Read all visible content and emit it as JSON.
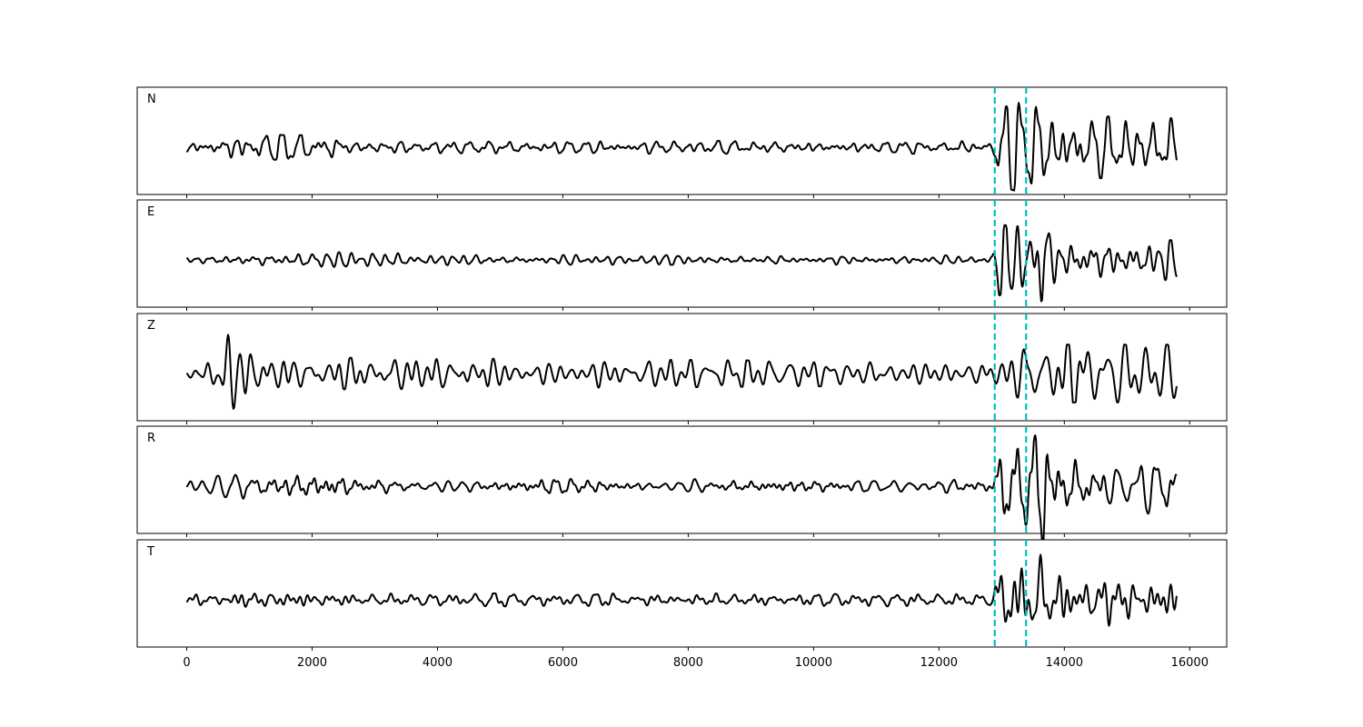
{
  "chart_data": {
    "type": "line",
    "title": "",
    "xlabel": "",
    "ylabel": "",
    "xlim": [
      -790,
      16590
    ],
    "x_ticks": [
      0,
      2000,
      4000,
      6000,
      8000,
      10000,
      12000,
      14000,
      16000
    ],
    "x_tick_labels": [
      "0",
      "2000",
      "4000",
      "6000",
      "8000",
      "10000",
      "12000",
      "14000",
      "16000"
    ],
    "x_range_of_traces": [
      0,
      15800
    ],
    "grid": false,
    "line_color": "#000000",
    "marker_color": "#00bfbf",
    "marker_style": "dashed",
    "vertical_markers": [
      12890,
      13390
    ],
    "panels": [
      {
        "label": "N",
        "envelope": [
          [
            0,
            0.1
          ],
          [
            800,
            0.2
          ],
          [
            2400,
            0.18
          ],
          [
            2600,
            0.1
          ],
          [
            12850,
            0.1
          ],
          [
            12950,
            0.6
          ],
          [
            13300,
            0.7
          ],
          [
            13600,
            0.95
          ],
          [
            13800,
            0.5
          ],
          [
            15800,
            0.45
          ]
        ]
      },
      {
        "label": "E",
        "envelope": [
          [
            0,
            0.05
          ],
          [
            1200,
            0.12
          ],
          [
            3400,
            0.12
          ],
          [
            3600,
            0.08
          ],
          [
            12850,
            0.07
          ],
          [
            12950,
            0.55
          ],
          [
            13500,
            0.5
          ],
          [
            13650,
            1.0
          ],
          [
            13800,
            0.45
          ],
          [
            15800,
            0.3
          ]
        ]
      },
      {
        "label": "Z",
        "envelope": [
          [
            0,
            0.06
          ],
          [
            400,
            0.4
          ],
          [
            500,
            0.95
          ],
          [
            900,
            0.7
          ],
          [
            1100,
            0.35
          ],
          [
            2000,
            0.25
          ],
          [
            12850,
            0.18
          ],
          [
            13000,
            0.15
          ],
          [
            13400,
            0.5
          ],
          [
            13600,
            0.45
          ],
          [
            15800,
            0.45
          ]
        ]
      },
      {
        "label": "R",
        "envelope": [
          [
            0,
            0.1
          ],
          [
            800,
            0.2
          ],
          [
            2400,
            0.2
          ],
          [
            2600,
            0.12
          ],
          [
            12850,
            0.1
          ],
          [
            12950,
            0.55
          ],
          [
            13400,
            0.6
          ],
          [
            13650,
            0.95
          ],
          [
            13800,
            0.55
          ],
          [
            15800,
            0.45
          ]
        ]
      },
      {
        "label": "T",
        "envelope": [
          [
            0,
            0.08
          ],
          [
            800,
            0.16
          ],
          [
            2400,
            0.16
          ],
          [
            2600,
            0.1
          ],
          [
            12850,
            0.1
          ],
          [
            12950,
            0.6
          ],
          [
            13300,
            0.7
          ],
          [
            13650,
            0.95
          ],
          [
            13800,
            0.5
          ],
          [
            15800,
            0.4
          ]
        ]
      }
    ]
  }
}
